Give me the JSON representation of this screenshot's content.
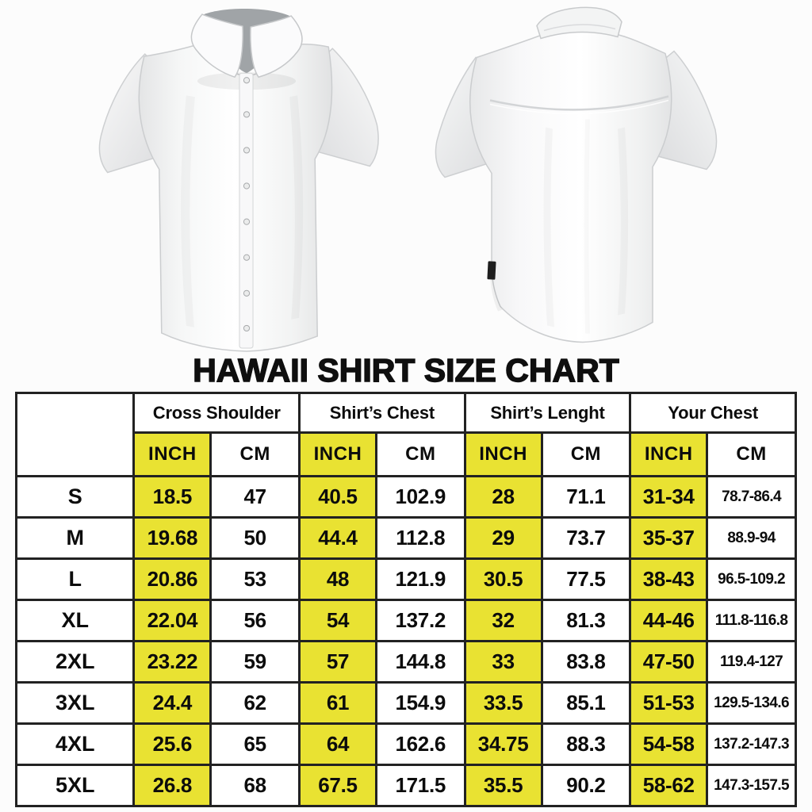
{
  "title": "HAWAII SHIRT SIZE CHART",
  "images": {
    "front_shirt": "white-short-sleeve-shirt-front",
    "back_shirt": "white-short-sleeve-shirt-back"
  },
  "colors": {
    "highlight_yellow": "#e9e232",
    "table_border": "#222222",
    "text": "#0c0c0c",
    "background": "#fcfcfc"
  },
  "table": {
    "corner_label": "",
    "groups": [
      {
        "label": "Cross Shoulder"
      },
      {
        "label": "Shirt’s Chest"
      },
      {
        "label": "Shirt’s Lenght"
      },
      {
        "label": "Your Chest"
      }
    ],
    "unit_headers": [
      "INCH",
      "CM"
    ],
    "rows": [
      {
        "size": "S",
        "cells": [
          "18.5",
          "47",
          "40.5",
          "102.9",
          "28",
          "71.1",
          "31-34",
          "78.7-86.4"
        ]
      },
      {
        "size": "M",
        "cells": [
          "19.68",
          "50",
          "44.4",
          "112.8",
          "29",
          "73.7",
          "35-37",
          "88.9-94"
        ]
      },
      {
        "size": "L",
        "cells": [
          "20.86",
          "53",
          "48",
          "121.9",
          "30.5",
          "77.5",
          "38-43",
          "96.5-109.2"
        ]
      },
      {
        "size": "XL",
        "cells": [
          "22.04",
          "56",
          "54",
          "137.2",
          "32",
          "81.3",
          "44-46",
          "111.8-116.8"
        ]
      },
      {
        "size": "2XL",
        "cells": [
          "23.22",
          "59",
          "57",
          "144.8",
          "33",
          "83.8",
          "47-50",
          "119.4-127"
        ]
      },
      {
        "size": "3XL",
        "cells": [
          "24.4",
          "62",
          "61",
          "154.9",
          "33.5",
          "85.1",
          "51-53",
          "129.5-134.6"
        ]
      },
      {
        "size": "4XL",
        "cells": [
          "25.6",
          "65",
          "64",
          "162.6",
          "34.75",
          "88.3",
          "54-58",
          "137.2-147.3"
        ]
      },
      {
        "size": "5XL",
        "cells": [
          "26.8",
          "68",
          "67.5",
          "171.5",
          "35.5",
          "90.2",
          "58-62",
          "147.3-157.5"
        ]
      }
    ]
  }
}
